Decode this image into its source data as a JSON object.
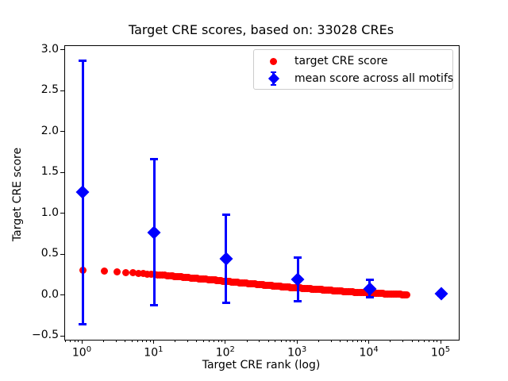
{
  "figure": {
    "title": "Target CRE scores, based on: 33028 CREs",
    "xlabel": "Target CRE rank (log)",
    "ylabel": "Target CRE score"
  },
  "legend": {
    "position": "upper right",
    "items": [
      {
        "label": "target CRE score",
        "marker": "circle-icon",
        "color": "#ff0000"
      },
      {
        "label": "mean score across all motifs",
        "marker": "diamond-errorbar-icon",
        "color": "#0000ff"
      }
    ]
  },
  "chart_data": {
    "type": "scatter",
    "title": "Target CRE scores, based on: 33028 CREs",
    "xlabel": "Target CRE rank (log)",
    "ylabel": "Target CRE score",
    "x_scale": "log",
    "xlim": [
      0.57,
      175000
    ],
    "ylim": [
      -0.55,
      3.05
    ],
    "x_tick_exponents": [
      0,
      1,
      2,
      3,
      4,
      5
    ],
    "y_ticks": [
      -0.5,
      0.0,
      0.5,
      1.0,
      1.5,
      2.0,
      2.5,
      3.0
    ],
    "grid": false,
    "legend_position": "upper right",
    "series": [
      {
        "name": "target CRE score",
        "type": "scatter",
        "marker": "circle",
        "color": "#ff0000",
        "n_total_points": 33028,
        "anchors": [
          [
            1,
            0.315
          ],
          [
            2,
            0.305
          ],
          [
            3,
            0.295
          ],
          [
            4,
            0.285
          ],
          [
            5,
            0.278
          ],
          [
            7,
            0.27
          ],
          [
            10,
            0.26
          ],
          [
            20,
            0.235
          ],
          [
            40,
            0.21
          ],
          [
            70,
            0.19
          ],
          [
            100,
            0.175
          ],
          [
            200,
            0.15
          ],
          [
            400,
            0.125
          ],
          [
            700,
            0.105
          ],
          [
            1000,
            0.095
          ],
          [
            2000,
            0.075
          ],
          [
            4000,
            0.055
          ],
          [
            7000,
            0.04
          ],
          [
            10000,
            0.032
          ],
          [
            20000,
            0.02
          ],
          [
            33028,
            0.012
          ]
        ]
      },
      {
        "name": "mean score across all motifs",
        "type": "errorbar",
        "marker": "diamond",
        "color": "#0000ff",
        "points": [
          {
            "rank": 1,
            "mean": 1.27,
            "lo": -0.35,
            "hi": 2.88
          },
          {
            "rank": 10,
            "mean": 0.77,
            "lo": -0.12,
            "hi": 1.67
          },
          {
            "rank": 100,
            "mean": 0.45,
            "lo": -0.09,
            "hi": 1.0
          },
          {
            "rank": 1000,
            "mean": 0.2,
            "lo": -0.07,
            "hi": 0.47
          },
          {
            "rank": 10000,
            "mean": 0.08,
            "lo": -0.02,
            "hi": 0.2
          },
          {
            "rank": 100000,
            "mean": 0.02,
            "lo": 0.0,
            "hi": 0.04
          }
        ]
      }
    ]
  }
}
